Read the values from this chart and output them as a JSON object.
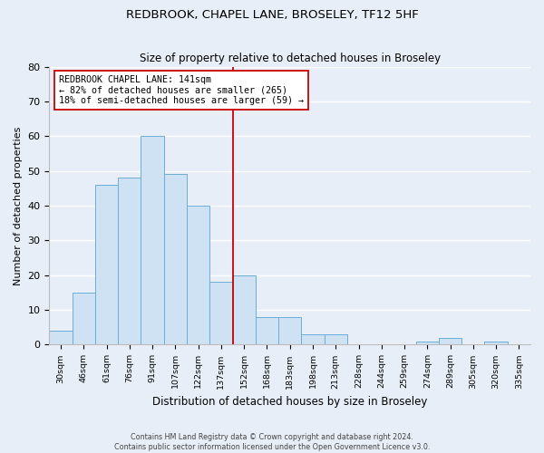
{
  "title": "REDBROOK, CHAPEL LANE, BROSELEY, TF12 5HF",
  "subtitle": "Size of property relative to detached houses in Broseley",
  "xlabel": "Distribution of detached houses by size in Broseley",
  "ylabel": "Number of detached properties",
  "bar_labels": [
    "30sqm",
    "46sqm",
    "61sqm",
    "76sqm",
    "91sqm",
    "107sqm",
    "122sqm",
    "137sqm",
    "152sqm",
    "168sqm",
    "183sqm",
    "198sqm",
    "213sqm",
    "228sqm",
    "244sqm",
    "259sqm",
    "274sqm",
    "289sqm",
    "305sqm",
    "320sqm",
    "335sqm"
  ],
  "bar_values": [
    4,
    15,
    46,
    48,
    60,
    49,
    40,
    18,
    20,
    8,
    8,
    3,
    3,
    0,
    0,
    0,
    1,
    2,
    0,
    1,
    0
  ],
  "bar_color": "#cfe2f3",
  "bar_edge_color": "#6aaed6",
  "vline_x_index": 7.5,
  "vline_color": "#cc0000",
  "annotation_title": "REDBROOK CHAPEL LANE: 141sqm",
  "annotation_line1": "← 82% of detached houses are smaller (265)",
  "annotation_line2": "18% of semi-detached houses are larger (59) →",
  "annotation_box_color": "#ffffff",
  "annotation_box_edge": "#cc0000",
  "ylim": [
    0,
    80
  ],
  "yticks": [
    0,
    10,
    20,
    30,
    40,
    50,
    60,
    70,
    80
  ],
  "footer_line1": "Contains HM Land Registry data © Crown copyright and database right 2024.",
  "footer_line2": "Contains public sector information licensed under the Open Government Licence v3.0.",
  "bg_color": "#e8eef8",
  "grid_color": "#ffffff"
}
